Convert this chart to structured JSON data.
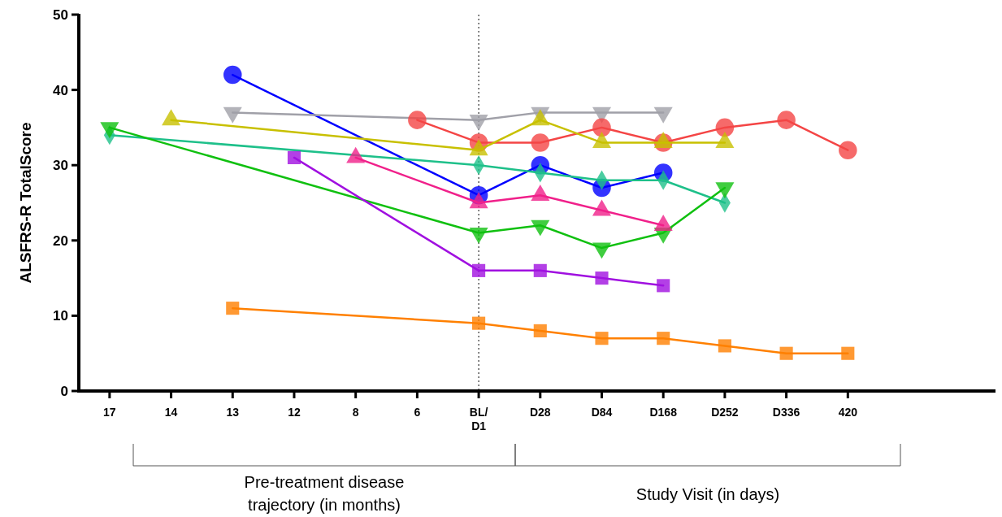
{
  "chart_data": {
    "type": "line",
    "ylabel": "ALSFRS-R TotalScore",
    "ylim": [
      0,
      50
    ],
    "yticks": [
      0,
      10,
      20,
      30,
      40,
      50
    ],
    "categories": [
      "17",
      "14",
      "13",
      "12",
      "8",
      "6",
      "BL/\nD1",
      "D28",
      "D84",
      "D168",
      "D252",
      "D336",
      "420"
    ],
    "grid": false,
    "line_style": "solid",
    "ref_lines": [
      {
        "axis": "x",
        "value": "BL/\nD1",
        "color": "#333333",
        "line_style": "dotted"
      }
    ],
    "annotations": [
      "Pre-treatment disease trajectory (in months)",
      "Study Visit (in days)"
    ],
    "series": [
      {
        "color": "#0000ff",
        "marker": "circle",
        "values": [
          null,
          null,
          42,
          null,
          null,
          null,
          26,
          30,
          27,
          29,
          null,
          null,
          null
        ]
      },
      {
        "color": "#a0a0a8",
        "marker": "triangle-down",
        "values": [
          null,
          null,
          37,
          null,
          null,
          null,
          36,
          37,
          37,
          37,
          null,
          null,
          null
        ]
      },
      {
        "color": "#f44545",
        "marker": "circle",
        "values": [
          null,
          null,
          null,
          null,
          null,
          36,
          33,
          33,
          35,
          33,
          35,
          36,
          32
        ]
      },
      {
        "color": "#c8c000",
        "marker": "triangle",
        "values": [
          null,
          36,
          null,
          null,
          null,
          null,
          32,
          36,
          33,
          33,
          33,
          null,
          null
        ]
      },
      {
        "color": "#1ec08a",
        "marker": "diamond",
        "values": [
          34,
          null,
          null,
          null,
          null,
          null,
          30,
          29,
          28,
          28,
          25,
          null,
          null
        ]
      },
      {
        "color": "#10c010",
        "marker": "triangle-down",
        "values": [
          35,
          null,
          null,
          null,
          null,
          null,
          21,
          22,
          19,
          21,
          27,
          null,
          null
        ]
      },
      {
        "color": "#f0208a",
        "marker": "triangle",
        "values": [
          null,
          null,
          null,
          null,
          31,
          null,
          25,
          26,
          24,
          22,
          null,
          null,
          null
        ]
      },
      {
        "color": "#a010e0",
        "marker": "square",
        "values": [
          null,
          null,
          null,
          31,
          null,
          null,
          16,
          16,
          15,
          14,
          null,
          null,
          null
        ]
      },
      {
        "color": "#ff8000",
        "marker": "square",
        "values": [
          null,
          null,
          11,
          null,
          null,
          null,
          9,
          8,
          7,
          7,
          6,
          5,
          5
        ]
      }
    ]
  }
}
